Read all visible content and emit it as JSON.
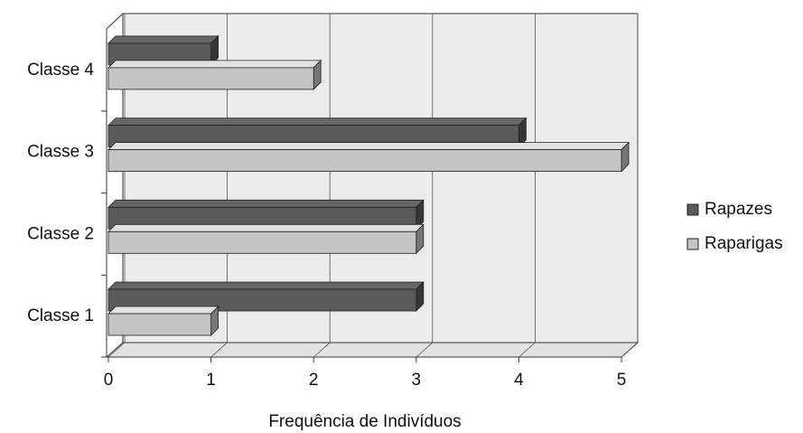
{
  "chart_data": {
    "type": "bar3d-horizontal",
    "categories": [
      "Classe 1",
      "Classe 2",
      "Classe 3",
      "Classe 4"
    ],
    "series": [
      {
        "name": "Rapazes",
        "color": "#5a5a5a",
        "values": [
          3,
          3,
          4,
          1
        ]
      },
      {
        "name": "Raparigas",
        "color": "#c4c4c4",
        "values": [
          1,
          3,
          5,
          2
        ]
      }
    ],
    "xlabel": "Frequência de Indivíduos",
    "xlim": [
      0,
      5
    ],
    "xticks": [
      0,
      1,
      2,
      3,
      4,
      5
    ],
    "grid": true,
    "legend": "right"
  }
}
